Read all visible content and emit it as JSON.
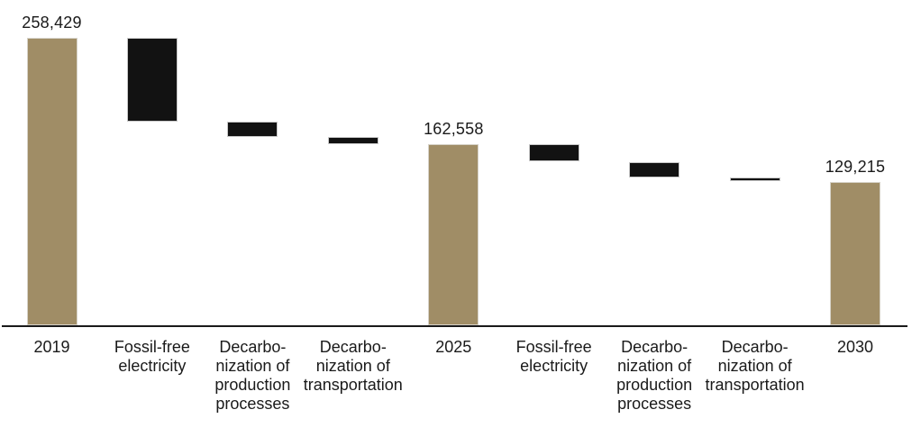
{
  "chart_data": {
    "type": "waterfall",
    "title": "",
    "xlabel": "",
    "ylabel": "",
    "axis_max": 258429,
    "grid": false,
    "legend": false,
    "categories": [
      "2019",
      "Fossil-free electricity",
      "Decarbo-nization of production processes",
      "Decarbo-nization of transportation",
      "2025",
      "Fossil-free electricity",
      "Decarbo-nization of production processes",
      "Decarbo-nization of transportation",
      "2030"
    ],
    "bars": [
      {
        "id": "2019",
        "label_lines": [
          "2019"
        ],
        "kind": "total",
        "start": 0,
        "end": 258429,
        "value": 258429,
        "value_label": "258,429"
      },
      {
        "id": "fossil-free-electricity-1",
        "label_lines": [
          "Fossil-free",
          "electricity"
        ],
        "kind": "decrease",
        "start": 258429,
        "end": 182929,
        "value": -75500,
        "value_label": ""
      },
      {
        "id": "decarbonization-of-production-processes-1",
        "label_lines": [
          "Decarbo-",
          "nization of",
          "production",
          "processes"
        ],
        "kind": "decrease",
        "start": 182929,
        "end": 169529,
        "value": -13400,
        "value_label": ""
      },
      {
        "id": "decarbonization-of-transportation-1",
        "label_lines": [
          "Decarbo-",
          "nization of",
          "transportation"
        ],
        "kind": "decrease",
        "start": 169529,
        "end": 162558,
        "value": -6971,
        "value_label": ""
      },
      {
        "id": "2025",
        "label_lines": [
          "2025"
        ],
        "kind": "total",
        "start": 0,
        "end": 162558,
        "value": 162558,
        "value_label": "162,558"
      },
      {
        "id": "fossil-free-electricity-2",
        "label_lines": [
          "Fossil-free",
          "electricity"
        ],
        "kind": "decrease",
        "start": 162558,
        "end": 147058,
        "value": -15500,
        "value_label": ""
      },
      {
        "id": "decarbonization-of-production-processes-2",
        "label_lines": [
          "Decarbo-",
          "nization of",
          "production",
          "processes"
        ],
        "kind": "decrease",
        "start": 147058,
        "end": 133058,
        "value": -14000,
        "value_label": ""
      },
      {
        "id": "decarbonization-of-transportation-2",
        "label_lines": [
          "Decarbo-",
          "nization of",
          "transportation"
        ],
        "kind": "decrease",
        "start": 133058,
        "end": 129215,
        "value": -3843,
        "value_label": ""
      },
      {
        "id": "2030",
        "label_lines": [
          "2030"
        ],
        "kind": "total",
        "start": 0,
        "end": 129215,
        "value": 129215,
        "value_label": "129,215"
      }
    ],
    "colors": {
      "total": "#a08d66",
      "decrease": "#121212",
      "axis": "#1a1a1a",
      "text": "#1a1a1a"
    }
  }
}
